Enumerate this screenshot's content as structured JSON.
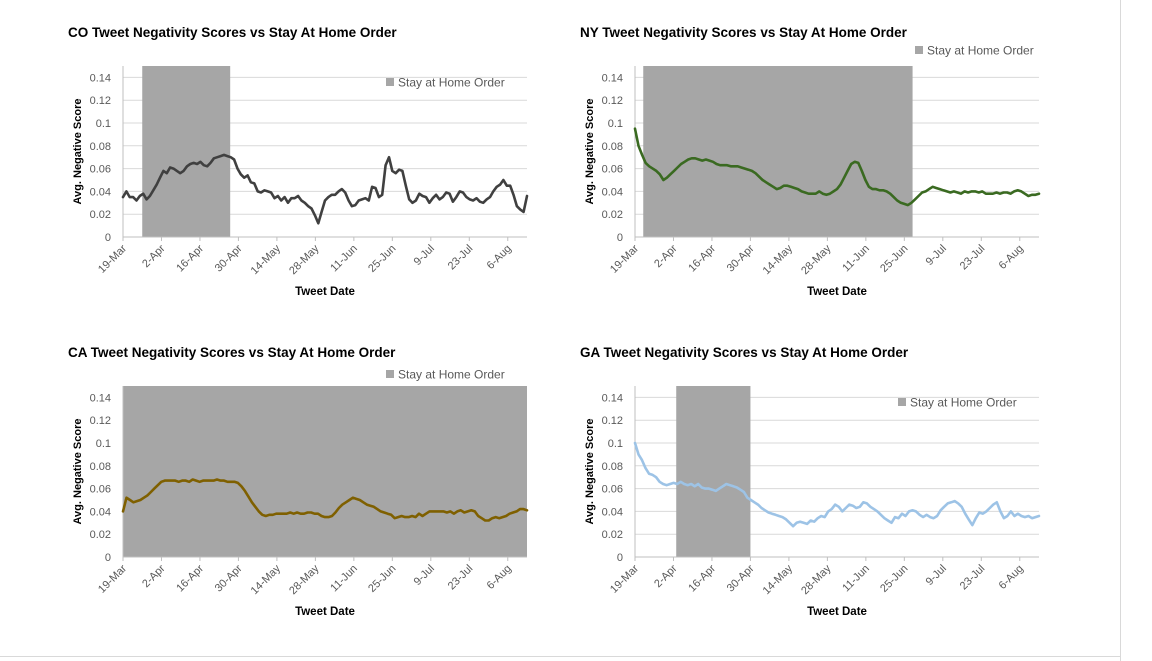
{
  "chart_data": [
    {
      "type": "line",
      "title": "CO Tweet Negativity Scores vs Stay At Home Order",
      "xlabel": "Tweet Date",
      "ylabel": "Avg. Negative Score",
      "ylim": [
        0,
        0.15
      ],
      "yticks": [
        "0",
        "0.02",
        "0.04",
        "0.06",
        "0.08",
        "0.1",
        "0.12",
        "0.14"
      ],
      "xticks": [
        "19-Mar",
        "2-Apr",
        "16-Apr",
        "30-Apr",
        "14-May",
        "28-May",
        "11-Jun",
        "25-Jun",
        "9-Jul",
        "23-Jul",
        "6-Aug"
      ],
      "x_start": "19-Mar",
      "x_end": "13-Aug",
      "legend": "Stay at Home Order",
      "legend_position": "top-right",
      "shade": {
        "from": "26-Mar",
        "to": "27-Apr"
      },
      "line_color": "#404040",
      "shade_color": "#a6a6a6",
      "series": [
        {
          "values": [
            0.035,
            0.04,
            0.035,
            0.035,
            0.032,
            0.036,
            0.038,
            0.033,
            0.036,
            0.041,
            0.046,
            0.052,
            0.058,
            0.056,
            0.061,
            0.06,
            0.058,
            0.056,
            0.058,
            0.062,
            0.064,
            0.065,
            0.064,
            0.066,
            0.063,
            0.062,
            0.065,
            0.069,
            0.07,
            0.071,
            0.072,
            0.071,
            0.07,
            0.068,
            0.06,
            0.055,
            0.052,
            0.054,
            0.048,
            0.047,
            0.04,
            0.039,
            0.041,
            0.04,
            0.039,
            0.034,
            0.036,
            0.032,
            0.035,
            0.03,
            0.034,
            0.034,
            0.036,
            0.032,
            0.03,
            0.027,
            0.025,
            0.019,
            0.012,
            0.022,
            0.032,
            0.035,
            0.037,
            0.037,
            0.04,
            0.042,
            0.039,
            0.032,
            0.027,
            0.028,
            0.032,
            0.033,
            0.034,
            0.032,
            0.044,
            0.043,
            0.035,
            0.037,
            0.063,
            0.07,
            0.058,
            0.056,
            0.059,
            0.058,
            0.045,
            0.033,
            0.03,
            0.032,
            0.038,
            0.036,
            0.035,
            0.03,
            0.034,
            0.037,
            0.033,
            0.035,
            0.039,
            0.038,
            0.031,
            0.035,
            0.04,
            0.039,
            0.035,
            0.033,
            0.032,
            0.034,
            0.031,
            0.03,
            0.033,
            0.035,
            0.04,
            0.044,
            0.046,
            0.05,
            0.045,
            0.045,
            0.037,
            0.027,
            0.024,
            0.022,
            0.036
          ]
        }
      ]
    },
    {
      "type": "line",
      "title": "NY Tweet Negativity Scores vs Stay At Home Order",
      "xlabel": "Tweet Date",
      "ylabel": "Avg. Negative Score",
      "ylim": [
        0,
        0.15
      ],
      "yticks": [
        "0",
        "0.02",
        "0.04",
        "0.06",
        "0.08",
        "0.1",
        "0.12",
        "0.14"
      ],
      "xticks": [
        "19-Mar",
        "2-Apr",
        "16-Apr",
        "30-Apr",
        "14-May",
        "28-May",
        "11-Jun",
        "25-Jun",
        "9-Jul",
        "23-Jul",
        "6-Aug"
      ],
      "x_start": "19-Mar",
      "x_end": "13-Aug",
      "legend": "Stay at Home Order",
      "legend_position": "top-right",
      "shade": {
        "from": "22-Mar",
        "to": "28-Jun"
      },
      "line_color": "#3a6a21",
      "shade_color": "#a6a6a6",
      "series": [
        {
          "values": [
            0.095,
            0.08,
            0.072,
            0.065,
            0.062,
            0.06,
            0.058,
            0.055,
            0.05,
            0.052,
            0.055,
            0.058,
            0.061,
            0.064,
            0.066,
            0.068,
            0.069,
            0.069,
            0.068,
            0.067,
            0.068,
            0.067,
            0.066,
            0.064,
            0.063,
            0.063,
            0.063,
            0.062,
            0.062,
            0.062,
            0.061,
            0.06,
            0.059,
            0.058,
            0.056,
            0.053,
            0.05,
            0.048,
            0.046,
            0.044,
            0.042,
            0.043,
            0.045,
            0.045,
            0.044,
            0.043,
            0.042,
            0.04,
            0.039,
            0.038,
            0.038,
            0.038,
            0.04,
            0.038,
            0.037,
            0.038,
            0.04,
            0.042,
            0.046,
            0.052,
            0.058,
            0.064,
            0.066,
            0.065,
            0.058,
            0.05,
            0.044,
            0.042,
            0.042,
            0.041,
            0.041,
            0.04,
            0.038,
            0.035,
            0.032,
            0.03,
            0.029,
            0.028,
            0.03,
            0.033,
            0.036,
            0.039,
            0.04,
            0.042,
            0.044,
            0.043,
            0.042,
            0.041,
            0.04,
            0.039,
            0.04,
            0.039,
            0.038,
            0.04,
            0.039,
            0.04,
            0.04,
            0.039,
            0.04,
            0.038,
            0.038,
            0.038,
            0.039,
            0.038,
            0.039,
            0.039,
            0.038,
            0.04,
            0.041,
            0.04,
            0.038,
            0.036,
            0.037,
            0.037,
            0.038
          ]
        }
      ]
    },
    {
      "type": "line",
      "title": "CA Tweet Negativity Scores vs Stay At Home Order",
      "xlabel": "Tweet Date",
      "ylabel": "Avg. Negative Score",
      "ylim": [
        0,
        0.15
      ],
      "yticks": [
        "0",
        "0.02",
        "0.04",
        "0.06",
        "0.08",
        "0.1",
        "0.12",
        "0.14"
      ],
      "xticks": [
        "19-Mar",
        "2-Apr",
        "16-Apr",
        "30-Apr",
        "14-May",
        "28-May",
        "11-Jun",
        "25-Jun",
        "9-Jul",
        "23-Jul",
        "6-Aug"
      ],
      "x_start": "19-Mar",
      "x_end": "13-Aug",
      "legend": "Stay at Home Order",
      "legend_position": "top-right",
      "shade": {
        "from": "19-Mar",
        "to": "13-Aug"
      },
      "line_color": "#7f6000",
      "shade_color": "#a6a6a6",
      "series": [
        {
          "values": [
            0.04,
            0.052,
            0.05,
            0.048,
            0.049,
            0.05,
            0.052,
            0.054,
            0.057,
            0.06,
            0.063,
            0.066,
            0.067,
            0.067,
            0.067,
            0.067,
            0.066,
            0.067,
            0.067,
            0.066,
            0.068,
            0.067,
            0.066,
            0.067,
            0.067,
            0.067,
            0.067,
            0.068,
            0.067,
            0.067,
            0.066,
            0.066,
            0.066,
            0.065,
            0.062,
            0.058,
            0.053,
            0.048,
            0.044,
            0.04,
            0.037,
            0.036,
            0.037,
            0.037,
            0.038,
            0.038,
            0.038,
            0.038,
            0.039,
            0.038,
            0.039,
            0.038,
            0.038,
            0.039,
            0.039,
            0.038,
            0.038,
            0.036,
            0.035,
            0.035,
            0.036,
            0.039,
            0.043,
            0.046,
            0.048,
            0.05,
            0.052,
            0.051,
            0.05,
            0.048,
            0.046,
            0.045,
            0.044,
            0.042,
            0.04,
            0.039,
            0.038,
            0.037,
            0.034,
            0.035,
            0.036,
            0.035,
            0.035,
            0.036,
            0.035,
            0.038,
            0.036,
            0.038,
            0.04,
            0.04,
            0.04,
            0.04,
            0.04,
            0.039,
            0.04,
            0.038,
            0.04,
            0.041,
            0.039,
            0.04,
            0.041,
            0.04,
            0.036,
            0.034,
            0.032,
            0.032,
            0.034,
            0.035,
            0.034,
            0.035,
            0.036,
            0.038,
            0.039,
            0.04,
            0.042,
            0.042,
            0.041
          ]
        }
      ]
    },
    {
      "type": "line",
      "title": "GA Tweet Negativity Scores vs Stay At Home Order",
      "xlabel": "Tweet Date",
      "ylabel": "Avg. Negative Score",
      "ylim": [
        0,
        0.15
      ],
      "yticks": [
        "0",
        "0.02",
        "0.04",
        "0.06",
        "0.08",
        "0.1",
        "0.12",
        "0.14"
      ],
      "xticks": [
        "19-Mar",
        "2-Apr",
        "16-Apr",
        "30-Apr",
        "14-May",
        "28-May",
        "11-Jun",
        "25-Jun",
        "9-Jul",
        "23-Jul",
        "6-Aug"
      ],
      "x_start": "19-Mar",
      "x_end": "13-Aug",
      "legend": "Stay at Home Order",
      "legend_position": "top-right",
      "shade": {
        "from": "3-Apr",
        "to": "30-Apr"
      },
      "line_color": "#9dc3e6",
      "shade_color": "#a6a6a6",
      "series": [
        {
          "values": [
            0.1,
            0.09,
            0.085,
            0.078,
            0.073,
            0.072,
            0.07,
            0.066,
            0.064,
            0.063,
            0.064,
            0.065,
            0.064,
            0.066,
            0.064,
            0.063,
            0.064,
            0.062,
            0.064,
            0.061,
            0.06,
            0.06,
            0.059,
            0.058,
            0.06,
            0.062,
            0.064,
            0.063,
            0.062,
            0.061,
            0.059,
            0.057,
            0.052,
            0.05,
            0.048,
            0.046,
            0.043,
            0.041,
            0.039,
            0.038,
            0.037,
            0.036,
            0.035,
            0.033,
            0.03,
            0.027,
            0.03,
            0.031,
            0.03,
            0.029,
            0.032,
            0.031,
            0.034,
            0.036,
            0.035,
            0.04,
            0.042,
            0.046,
            0.044,
            0.04,
            0.043,
            0.046,
            0.045,
            0.043,
            0.044,
            0.048,
            0.047,
            0.044,
            0.042,
            0.04,
            0.037,
            0.034,
            0.032,
            0.03,
            0.035,
            0.034,
            0.038,
            0.036,
            0.04,
            0.041,
            0.04,
            0.037,
            0.035,
            0.037,
            0.035,
            0.034,
            0.036,
            0.041,
            0.044,
            0.047,
            0.048,
            0.049,
            0.047,
            0.044,
            0.038,
            0.033,
            0.028,
            0.034,
            0.039,
            0.038,
            0.04,
            0.043,
            0.046,
            0.048,
            0.04,
            0.034,
            0.036,
            0.04,
            0.036,
            0.038,
            0.036,
            0.035,
            0.036,
            0.034,
            0.035,
            0.036
          ]
        }
      ]
    }
  ]
}
